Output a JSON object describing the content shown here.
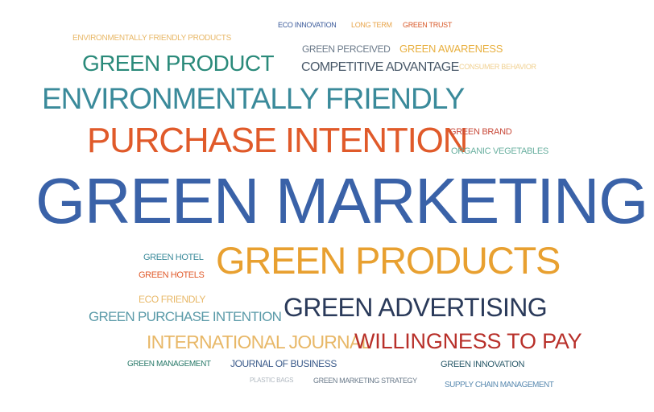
{
  "word_cloud": {
    "words": [
      {
        "id": "eco-innovation",
        "text": "ECO INNOVATION",
        "color": "#3a5a9a"
      },
      {
        "id": "long-term",
        "text": "LONG TERM",
        "color": "#e8a44a"
      },
      {
        "id": "green-trust",
        "text": "GREEN TRUST",
        "color": "#d85a2a"
      },
      {
        "id": "environmentally-friendly-products",
        "text": "ENVIRONMENTALLY FRIENDLY PRODUCTS",
        "color": "#e8b868"
      },
      {
        "id": "green-perceived",
        "text": "GREEN PERCEIVED",
        "color": "#6b7a8a"
      },
      {
        "id": "green-awareness",
        "text": "GREEN AWARENESS",
        "color": "#e8b040"
      },
      {
        "id": "green-product",
        "text": "GREEN PRODUCT",
        "color": "#2a8a7a"
      },
      {
        "id": "competitive-advantage",
        "text": "COMPETITIVE ADVANTAGE",
        "color": "#4a5a6a"
      },
      {
        "id": "consumer-behavior",
        "text": "CONSUMER BEHAVIOR",
        "color": "#f0d090"
      },
      {
        "id": "environmentally-friendly",
        "text": "ENVIRONMENTALLY FRIENDLY",
        "color": "#3a8a9a"
      },
      {
        "id": "purchase-intention",
        "text": "PURCHASE INTENTION",
        "color": "#e05a2a"
      },
      {
        "id": "green-brand",
        "text": "GREEN BRAND",
        "color": "#c84a3a"
      },
      {
        "id": "organic-vegetables",
        "text": "ORGANIC VEGETABLES",
        "color": "#6ab0a0"
      },
      {
        "id": "green-marketing",
        "text": "GREEN MARKETING",
        "color": "#3a62a8"
      },
      {
        "id": "green-hotel",
        "text": "GREEN HOTEL",
        "color": "#3a8a9a"
      },
      {
        "id": "green-products",
        "text": "GREEN PRODUCTS",
        "color": "#e8a030"
      },
      {
        "id": "green-hotels",
        "text": "GREEN HOTELS",
        "color": "#e05a2a"
      },
      {
        "id": "eco-friendly",
        "text": "ECO FRIENDLY",
        "color": "#e8b868"
      },
      {
        "id": "green-purchase-intention",
        "text": "GREEN PURCHASE INTENTION",
        "color": "#5a9aa8"
      },
      {
        "id": "green-advertising",
        "text": "GREEN ADVERTISING",
        "color": "#2a3a5a"
      },
      {
        "id": "international-journal",
        "text": "INTERNATIONAL JOURNAL",
        "color": "#e8b868"
      },
      {
        "id": "willingness-to-pay",
        "text": "WILLINGNESS TO PAY",
        "color": "#b8302a"
      },
      {
        "id": "green-management",
        "text": "GREEN MANAGEMENT",
        "color": "#2a7a6a"
      },
      {
        "id": "journal-of-business",
        "text": "JOURNAL OF BUSINESS",
        "color": "#3a5a8a"
      },
      {
        "id": "green-innovation",
        "text": "GREEN INNOVATION",
        "color": "#2a5a6a"
      },
      {
        "id": "plastic-bags",
        "text": "PLASTIC BAGS",
        "color": "#b0b8c0"
      },
      {
        "id": "green-marketing-strategy",
        "text": "GREEN MARKETING STRATEGY",
        "color": "#6a7a8a"
      },
      {
        "id": "supply-chain-management",
        "text": "SUPPLY CHAIN MANAGEMENT",
        "color": "#5a8ab0"
      }
    ]
  }
}
